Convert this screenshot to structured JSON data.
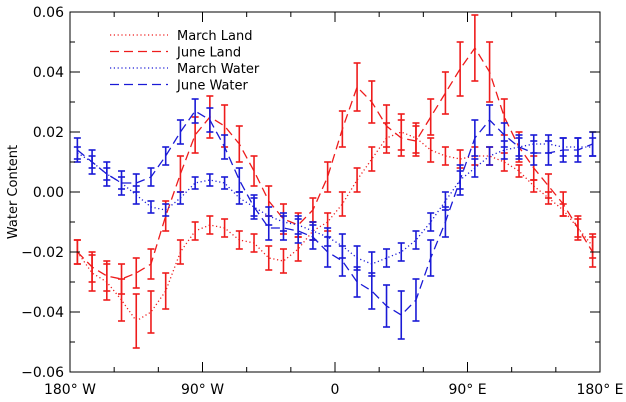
{
  "chart_data": {
    "type": "line",
    "ylabel": "Water Content",
    "xlabel": "",
    "xlim": [
      -180,
      180
    ],
    "ylim": [
      -0.06,
      0.06
    ],
    "x_ticks": [
      {
        "value": -180,
        "label": "180° W"
      },
      {
        "value": -90,
        "label": "90° W"
      },
      {
        "value": 0,
        "label": "0"
      },
      {
        "value": 90,
        "label": "90° E"
      },
      {
        "value": 180,
        "label": "180° E"
      }
    ],
    "y_ticks": [
      {
        "value": -0.06,
        "label": "−0.06"
      },
      {
        "value": -0.04,
        "label": "−0.04"
      },
      {
        "value": -0.02,
        "label": "−0.02"
      },
      {
        "value": 0.0,
        "label": "0.00"
      },
      {
        "value": 0.02,
        "label": "0.02"
      },
      {
        "value": 0.04,
        "label": "0.04"
      },
      {
        "value": 0.06,
        "label": "0.06"
      }
    ],
    "grid": false,
    "legend_position": "top-left",
    "series": [
      {
        "name": "March Land",
        "color": "#ee1c1c",
        "linestyle": "dotted",
        "x": [
          -175,
          -165,
          -155,
          -145,
          -135,
          -125,
          -115,
          -105,
          -95,
          -85,
          -75,
          -65,
          -55,
          -45,
          -35,
          -25,
          -15,
          -5,
          5,
          15,
          25,
          35,
          45,
          55,
          65,
          75,
          85,
          95,
          105,
          115,
          125,
          135,
          145,
          155,
          165,
          175
        ],
        "y": [
          -0.02,
          -0.027,
          -0.03,
          -0.036,
          -0.043,
          -0.04,
          -0.033,
          -0.02,
          -0.013,
          -0.011,
          -0.012,
          -0.016,
          -0.017,
          -0.022,
          -0.023,
          -0.019,
          -0.013,
          -0.01,
          -0.004,
          0.004,
          0.011,
          0.018,
          0.02,
          0.018,
          0.014,
          0.012,
          0.011,
          0.012,
          0.012,
          0.01,
          0.007,
          0.002,
          -0.002,
          -0.006,
          -0.012,
          -0.018
        ],
        "err": [
          0.004,
          0.006,
          0.006,
          0.007,
          0.009,
          0.007,
          0.006,
          0.004,
          0.003,
          0.003,
          0.003,
          0.003,
          0.003,
          0.004,
          0.004,
          0.004,
          0.003,
          0.003,
          0.004,
          0.004,
          0.004,
          0.005,
          0.006,
          0.005,
          0.004,
          0.003,
          0.003,
          0.003,
          0.003,
          0.003,
          0.002,
          0.002,
          0.002,
          0.002,
          0.003,
          0.004
        ]
      },
      {
        "name": "June Land",
        "color": "#ee1c1c",
        "linestyle": "dashed",
        "x": [
          -175,
          -165,
          -155,
          -145,
          -135,
          -125,
          -115,
          -105,
          -95,
          -85,
          -75,
          -65,
          -55,
          -45,
          -35,
          -25,
          -15,
          -5,
          5,
          15,
          25,
          35,
          45,
          55,
          65,
          75,
          85,
          95,
          105,
          115,
          125,
          135,
          145,
          155,
          165,
          175
        ],
        "y": [
          -0.02,
          -0.025,
          -0.028,
          -0.029,
          -0.027,
          -0.024,
          -0.008,
          0.006,
          0.019,
          0.025,
          0.022,
          0.016,
          0.007,
          -0.003,
          -0.009,
          -0.011,
          -0.006,
          0.005,
          0.021,
          0.035,
          0.03,
          0.022,
          0.018,
          0.017,
          0.025,
          0.033,
          0.041,
          0.048,
          0.04,
          0.025,
          0.015,
          0.008,
          0.002,
          -0.004,
          -0.012,
          -0.02
        ],
        "err": [
          0.004,
          0.005,
          0.005,
          0.005,
          0.005,
          0.005,
          0.005,
          0.006,
          0.006,
          0.007,
          0.007,
          0.006,
          0.005,
          0.005,
          0.005,
          0.004,
          0.004,
          0.005,
          0.006,
          0.008,
          0.007,
          0.007,
          0.006,
          0.005,
          0.006,
          0.007,
          0.009,
          0.011,
          0.01,
          0.006,
          0.005,
          0.004,
          0.004,
          0.004,
          0.004,
          0.005
        ]
      },
      {
        "name": "March Water",
        "color": "#1a1ad6",
        "linestyle": "dotted",
        "x": [
          -175,
          -165,
          -155,
          -145,
          -135,
          -125,
          -115,
          -105,
          -95,
          -85,
          -75,
          -65,
          -55,
          -45,
          -35,
          -25,
          -15,
          -5,
          5,
          15,
          25,
          35,
          45,
          55,
          65,
          75,
          85,
          95,
          105,
          115,
          125,
          135,
          145,
          155,
          165,
          175
        ],
        "y": [
          0.013,
          0.01,
          0.006,
          0.003,
          -0.001,
          -0.005,
          -0.006,
          -0.002,
          0.003,
          0.004,
          0.003,
          -0.002,
          -0.005,
          -0.008,
          -0.01,
          -0.011,
          -0.013,
          -0.015,
          -0.018,
          -0.022,
          -0.024,
          -0.022,
          -0.02,
          -0.016,
          -0.01,
          -0.003,
          0.004,
          0.008,
          0.012,
          0.014,
          0.015,
          0.016,
          0.016,
          0.015,
          0.015,
          0.015
        ],
        "err": [
          0.002,
          0.002,
          0.002,
          0.002,
          0.003,
          0.002,
          0.002,
          0.002,
          0.002,
          0.002,
          0.002,
          0.002,
          0.003,
          0.003,
          0.003,
          0.003,
          0.003,
          0.003,
          0.004,
          0.004,
          0.004,
          0.003,
          0.003,
          0.003,
          0.003,
          0.003,
          0.003,
          0.003,
          0.003,
          0.003,
          0.003,
          0.003,
          0.003,
          0.003,
          0.003,
          0.003
        ]
      },
      {
        "name": "June Water",
        "color": "#1a1ad6",
        "linestyle": "dashed",
        "x": [
          -175,
          -165,
          -155,
          -145,
          -135,
          -125,
          -115,
          -105,
          -95,
          -85,
          -75,
          -65,
          -55,
          -45,
          -35,
          -25,
          -15,
          -5,
          5,
          15,
          25,
          35,
          45,
          55,
          65,
          75,
          85,
          95,
          105,
          115,
          125,
          135,
          145,
          155,
          165,
          175
        ],
        "y": [
          0.014,
          0.01,
          0.006,
          0.003,
          0.003,
          0.005,
          0.012,
          0.02,
          0.027,
          0.024,
          0.015,
          0.004,
          -0.005,
          -0.012,
          -0.012,
          -0.013,
          -0.015,
          -0.02,
          -0.023,
          -0.03,
          -0.033,
          -0.038,
          -0.041,
          -0.036,
          -0.022,
          -0.01,
          0.004,
          0.018,
          0.024,
          0.019,
          0.015,
          0.013,
          0.013,
          0.014,
          0.014,
          0.016
        ],
        "err": [
          0.004,
          0.004,
          0.004,
          0.004,
          0.003,
          0.003,
          0.003,
          0.004,
          0.004,
          0.004,
          0.004,
          0.004,
          0.004,
          0.004,
          0.004,
          0.004,
          0.004,
          0.005,
          0.005,
          0.005,
          0.006,
          0.007,
          0.008,
          0.007,
          0.006,
          0.005,
          0.005,
          0.006,
          0.005,
          0.004,
          0.004,
          0.004,
          0.004,
          0.004,
          0.004,
          0.004
        ]
      }
    ]
  }
}
